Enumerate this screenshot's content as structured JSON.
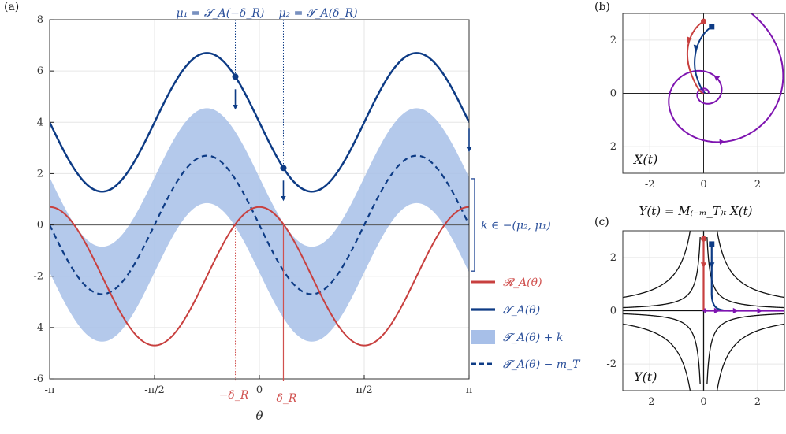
{
  "colors": {
    "red": "#c8403f",
    "blue": "#0d3b85",
    "band": "#a7bfe8",
    "purple": "#7e14b0",
    "annotation_blue": "#2a4f9a",
    "annotation_red": "#d0504e"
  },
  "panels": {
    "a": "(a)",
    "b": "(b)",
    "c": "(c)"
  },
  "chart_data": [
    {
      "type": "line",
      "panel": "a",
      "xlabel": "θ",
      "ylabel": "",
      "xlim": [
        -3.14159,
        3.14159
      ],
      "ylim": [
        -6,
        8
      ],
      "xticks": [
        -3.14159,
        -1.5708,
        0,
        1.5708,
        3.14159
      ],
      "xtick_labels": [
        "-π",
        "-π/2",
        "0",
        "π/2",
        "π"
      ],
      "yticks": [
        -6,
        -4,
        -2,
        0,
        2,
        4,
        6,
        8
      ],
      "ytick_labels": [
        "-6",
        "-4",
        "-2",
        "0",
        "2",
        "4",
        "6",
        "8"
      ],
      "grid": true,
      "legend_position": "bottom-right",
      "series": [
        {
          "name": "𝓡_A(θ)",
          "role": "R",
          "x": [
            -3.14,
            -2.36,
            -1.57,
            -0.79,
            0,
            0.79,
            1.57,
            2.36,
            3.14
          ],
          "y": [
            0.7,
            -3.2,
            -4.7,
            -1.3,
            0.7,
            -1.3,
            -4.7,
            -3.2,
            0.7
          ]
        },
        {
          "name": "𝓣_A(θ)",
          "role": "T",
          "x": [
            -3.14,
            -2.36,
            -1.57,
            -0.79,
            0,
            0.79,
            1.57,
            2.36,
            3.14
          ],
          "y": [
            4.0,
            1.3,
            4.0,
            6.7,
            4.0,
            1.3,
            4.0,
            6.7,
            4.0
          ]
        },
        {
          "name": "𝓣_A(θ) + k",
          "role": "band",
          "band_offset": [
            -1.85,
            1.85
          ]
        },
        {
          "name": "𝓣_A(θ) − m_T",
          "role": "T_minus",
          "offset": -4.0
        }
      ],
      "annotations": {
        "mu1_label": "μ₁ = 𝓣_A(−δ_R)",
        "mu2_label": "μ₂ = 𝓣_A(δ_R)",
        "k_label": "k ∈ −(μ₂, μ₁)",
        "minus_delta_label": "−δ_R",
        "delta_label": "δ_R",
        "mu1_point": [
          -0.36,
          5.78
        ],
        "mu2_point": [
          0.36,
          2.2
        ],
        "delta_R": 0.36
      }
    },
    {
      "type": "line",
      "panel": "b",
      "xlabel": "",
      "ylabel": "",
      "inplot_label": "X(t)",
      "xlim": [
        -3,
        3
      ],
      "ylim": [
        -3,
        3
      ],
      "xticks": [
        -2,
        0,
        2
      ],
      "xtick_labels": [
        "-2",
        "0",
        "2"
      ],
      "yticks": [
        -2,
        0,
        2
      ],
      "ytick_labels": [
        "-2",
        "0",
        "2"
      ],
      "grid": true,
      "series": [
        {
          "role": "red_trajectory",
          "x": [
            0,
            -0.5,
            -0.5
          ],
          "y": [
            2.7,
            1.8,
            1.0
          ]
        },
        {
          "role": "blue_trajectory",
          "x": [
            0.3,
            -0.3,
            -0.1
          ],
          "y": [
            2.5,
            1.6,
            0.2
          ]
        },
        {
          "role": "purple_spiral",
          "spiral_turns": 2.5
        }
      ]
    },
    {
      "type": "line",
      "panel": "c",
      "xlabel": "",
      "ylabel": "",
      "title": "Y(t) = M₍₋ₘ_T₎ₜ X(t)",
      "inplot_label": "Y(t)",
      "xlim": [
        -3,
        3
      ],
      "ylim": [
        -3,
        3
      ],
      "xticks": [
        -2,
        0,
        2
      ],
      "xtick_labels": [
        "-2",
        "0",
        "2"
      ],
      "yticks": [
        -2,
        0,
        2
      ],
      "ytick_labels": [
        "-2",
        "0",
        "2"
      ],
      "grid": true,
      "series": [
        {
          "role": "red_trajectory",
          "x": [
            0,
            0
          ],
          "y": [
            2.7,
            0
          ]
        },
        {
          "role": "blue_trajectory",
          "x": [
            0.3,
            0.35,
            1.0
          ],
          "y": [
            2.5,
            0.4,
            0
          ]
        },
        {
          "role": "purple_flow",
          "x": [
            0,
            3
          ],
          "y": [
            0,
            0
          ]
        },
        {
          "role": "hyperbolas",
          "c": [
            0.35,
            1.5
          ]
        }
      ]
    }
  ]
}
